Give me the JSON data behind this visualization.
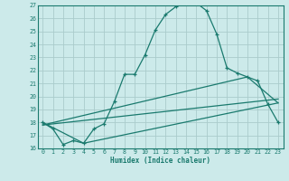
{
  "xlabel": "Humidex (Indice chaleur)",
  "bg_color": "#cceaea",
  "grid_color": "#aacccc",
  "line_color": "#1a7a6e",
  "xlim": [
    -0.5,
    23.5
  ],
  "ylim": [
    16,
    27
  ],
  "x_ticks": [
    0,
    1,
    2,
    3,
    4,
    5,
    6,
    7,
    8,
    9,
    10,
    11,
    12,
    13,
    14,
    15,
    16,
    17,
    18,
    19,
    20,
    21,
    22,
    23
  ],
  "y_ticks": [
    16,
    17,
    18,
    19,
    20,
    21,
    22,
    23,
    24,
    25,
    26,
    27
  ],
  "series1_x": [
    0,
    1,
    2,
    3,
    4,
    5,
    6,
    7,
    8,
    9,
    10,
    11,
    12,
    13,
    14,
    15,
    16,
    17,
    18,
    19,
    20,
    21,
    22,
    23
  ],
  "series1_y": [
    18.0,
    17.5,
    16.3,
    16.6,
    16.4,
    17.5,
    17.9,
    19.6,
    21.7,
    21.7,
    23.2,
    25.1,
    26.3,
    26.9,
    27.2,
    27.2,
    26.6,
    24.8,
    22.2,
    21.8,
    21.5,
    21.2,
    19.4,
    18.0
  ],
  "series2_x": [
    0,
    4,
    23
  ],
  "series2_y": [
    18.0,
    16.4,
    19.5
  ],
  "series3_x": [
    0,
    23
  ],
  "series3_y": [
    17.8,
    19.8
  ],
  "series4_x": [
    0,
    20,
    23
  ],
  "series4_y": [
    17.8,
    21.5,
    19.5
  ]
}
